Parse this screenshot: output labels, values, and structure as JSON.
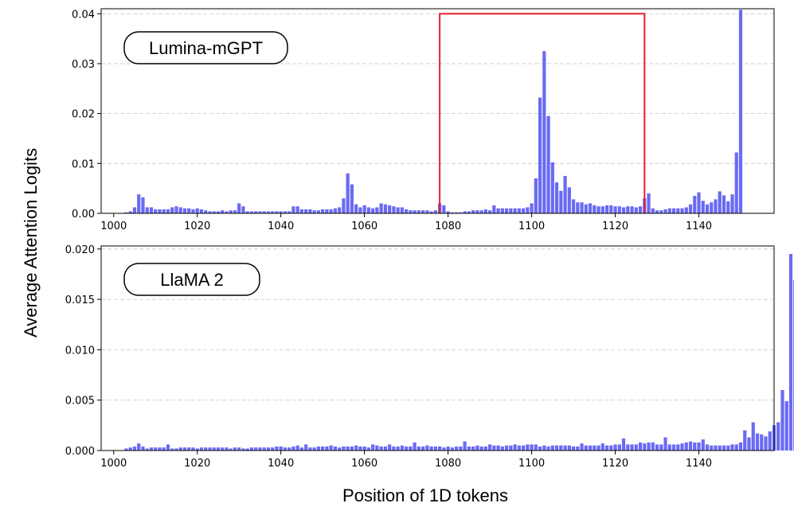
{
  "figure": {
    "ylabel": "Average Attention Logits",
    "xlabel": "Position of 1D tokens"
  },
  "chart_data": [
    {
      "type": "bar",
      "panel_label": "Lumina-mGPT",
      "xlim": [
        997,
        1158
      ],
      "ylim": [
        0,
        0.041
      ],
      "xticks": [
        1000,
        1020,
        1040,
        1060,
        1080,
        1100,
        1120,
        1140
      ],
      "yticks": [
        "0.00",
        "0.01",
        "0.02",
        "0.03",
        "0.04"
      ],
      "ytick_values": [
        0,
        0.01,
        0.02,
        0.03,
        0.04
      ],
      "grid": "y dashed",
      "bar_color": "#6a6af4",
      "highlight_box": {
        "x_start": 1078,
        "x_end": 1127,
        "y_top": 0.04,
        "color": "#e8202a"
      },
      "x_start": 1003,
      "values": [
        0.0002,
        0.0004,
        0.0012,
        0.0038,
        0.0032,
        0.0012,
        0.0012,
        0.0008,
        0.0008,
        0.0008,
        0.0008,
        0.0012,
        0.0014,
        0.0012,
        0.001,
        0.001,
        0.0008,
        0.001,
        0.0008,
        0.0006,
        0.0004,
        0.0004,
        0.0004,
        0.0006,
        0.0004,
        0.0006,
        0.0006,
        0.002,
        0.0014,
        0.0004,
        0.0004,
        0.0004,
        0.0004,
        0.0004,
        0.0004,
        0.0004,
        0.0004,
        0.0004,
        0.0004,
        0.0004,
        0.0014,
        0.0014,
        0.0008,
        0.0008,
        0.0008,
        0.0006,
        0.0006,
        0.0008,
        0.0008,
        0.0008,
        0.001,
        0.0012,
        0.003,
        0.008,
        0.0058,
        0.0018,
        0.0012,
        0.0016,
        0.0012,
        0.001,
        0.0012,
        0.002,
        0.0018,
        0.0016,
        0.0014,
        0.0012,
        0.0012,
        0.0008,
        0.0006,
        0.0006,
        0.0006,
        0.0006,
        0.0006,
        0.0004,
        0.0006,
        0.002,
        0.0016,
        0.0004,
        0.0002,
        0.0002,
        0.0002,
        0.0004,
        0.0004,
        0.0006,
        0.0006,
        0.0006,
        0.0008,
        0.0006,
        0.0016,
        0.001,
        0.001,
        0.001,
        0.001,
        0.001,
        0.001,
        0.001,
        0.0012,
        0.002,
        0.007,
        0.0232,
        0.0325,
        0.0195,
        0.0102,
        0.0062,
        0.0045,
        0.0075,
        0.0052,
        0.0028,
        0.0022,
        0.0022,
        0.0018,
        0.002,
        0.0016,
        0.0014,
        0.0014,
        0.0016,
        0.0016,
        0.0014,
        0.0014,
        0.0012,
        0.0014,
        0.0014,
        0.0012,
        0.0014,
        0.003,
        0.004,
        0.001,
        0.0006,
        0.0006,
        0.0008,
        0.001,
        0.001,
        0.001,
        0.001,
        0.0012,
        0.0018,
        0.0035,
        0.0042,
        0.0025,
        0.0018,
        0.0022,
        0.0028,
        0.0044,
        0.0036,
        0.0024,
        0.0038,
        0.0122,
        0.0408
      ]
    },
    {
      "type": "bar",
      "panel_label": "LlaMA 2",
      "xlim": [
        997,
        1158
      ],
      "ylim": [
        0,
        0.0203
      ],
      "xticks": [
        1000,
        1020,
        1040,
        1060,
        1080,
        1100,
        1120,
        1140
      ],
      "yticks": [
        "0.000",
        "0.005",
        "0.010",
        "0.015",
        "0.020"
      ],
      "ytick_values": [
        0,
        0.005,
        0.01,
        0.015,
        0.02
      ],
      "grid": "y dashed",
      "bar_color": "#6a6af4",
      "x_start": 1003,
      "values": [
        0.0002,
        0.0003,
        0.0004,
        0.0007,
        0.0004,
        0.0002,
        0.0003,
        0.0003,
        0.0003,
        0.0003,
        0.0006,
        0.0002,
        0.0002,
        0.0003,
        0.0003,
        0.0003,
        0.0003,
        0.0002,
        0.0003,
        0.0003,
        0.0003,
        0.0003,
        0.0003,
        0.0003,
        0.0003,
        0.0002,
        0.0003,
        0.0003,
        0.0002,
        0.0002,
        0.0003,
        0.0003,
        0.0003,
        0.0003,
        0.0003,
        0.0003,
        0.0004,
        0.0004,
        0.0003,
        0.0003,
        0.0004,
        0.0005,
        0.0003,
        0.0006,
        0.0003,
        0.0003,
        0.0004,
        0.0004,
        0.0004,
        0.0005,
        0.0004,
        0.0003,
        0.0004,
        0.0004,
        0.0004,
        0.0005,
        0.0004,
        0.0004,
        0.0003,
        0.0006,
        0.0005,
        0.0004,
        0.0004,
        0.0006,
        0.0004,
        0.0004,
        0.0005,
        0.0004,
        0.0004,
        0.0008,
        0.0004,
        0.0004,
        0.0005,
        0.0004,
        0.0004,
        0.0004,
        0.0003,
        0.0004,
        0.0003,
        0.0004,
        0.0004,
        0.0009,
        0.0004,
        0.0004,
        0.0005,
        0.0004,
        0.0004,
        0.0006,
        0.0005,
        0.0005,
        0.0004,
        0.0005,
        0.0005,
        0.0006,
        0.0005,
        0.0005,
        0.0006,
        0.0006,
        0.0006,
        0.0004,
        0.0005,
        0.0004,
        0.0005,
        0.0005,
        0.0005,
        0.0005,
        0.0005,
        0.0004,
        0.0004,
        0.0007,
        0.0005,
        0.0005,
        0.0005,
        0.0005,
        0.0007,
        0.0005,
        0.0005,
        0.0006,
        0.0006,
        0.0012,
        0.0006,
        0.0006,
        0.0006,
        0.0008,
        0.0007,
        0.0008,
        0.0008,
        0.0006,
        0.0006,
        0.0013,
        0.0006,
        0.0006,
        0.0006,
        0.0007,
        0.0008,
        0.0009,
        0.0008,
        0.0008,
        0.0011,
        0.0006,
        0.0005,
        0.0005,
        0.0005,
        0.0005,
        0.0005,
        0.0006,
        0.0006,
        0.0008,
        0.002,
        0.0013,
        0.0028,
        0.0017,
        0.0016,
        0.0014,
        0.0019,
        0.0025,
        0.0028,
        0.006,
        0.0049,
        0.0195,
        0.0169
      ]
    }
  ]
}
